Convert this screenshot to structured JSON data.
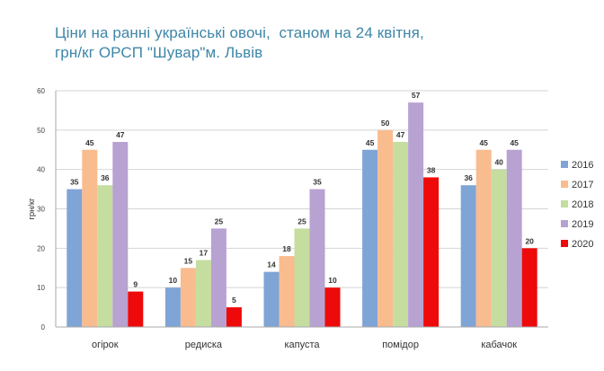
{
  "chart_data": {
    "type": "bar",
    "title_lines": [
      "Ціни на ранні українські овочі,  станом на 24 квітня,",
      "грн/кг ОРСП \"Шувар\"м. Львів"
    ],
    "xlabel": "",
    "ylabel": "грн/кг",
    "ylim": [
      0,
      60
    ],
    "yticks": [
      0,
      10,
      20,
      30,
      40,
      50,
      60
    ],
    "grid": true,
    "legend_position": "right",
    "categories": [
      "огірок",
      "редиска",
      "капуста",
      "помідор",
      "кабачок"
    ],
    "series": [
      {
        "name": "2016",
        "color": "#7fa4d6",
        "values": [
          35,
          10,
          14,
          45,
          36
        ]
      },
      {
        "name": "2017",
        "color": "#f9bc8f",
        "values": [
          45,
          15,
          18,
          50,
          45
        ]
      },
      {
        "name": "2018",
        "color": "#c5dd9f",
        "values": [
          36,
          17,
          25,
          47,
          40
        ]
      },
      {
        "name": "2019",
        "color": "#b7a2d2",
        "values": [
          47,
          25,
          35,
          57,
          45
        ]
      },
      {
        "name": "2020",
        "color": "#ee0a0a",
        "values": [
          9,
          5,
          10,
          38,
          20
        ]
      }
    ]
  }
}
